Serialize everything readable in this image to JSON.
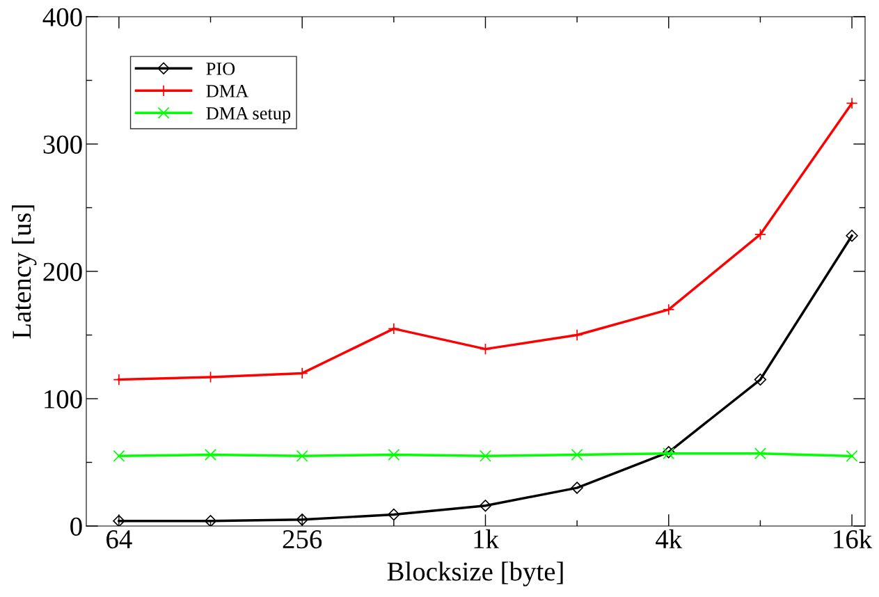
{
  "chart_data": {
    "type": "line",
    "xlabel": "Blocksize [byte]",
    "ylabel": "Latency [us]",
    "log": "x",
    "x": [
      64,
      128,
      256,
      512,
      1024,
      2048,
      4096,
      8192,
      16384
    ],
    "xlim": [
      50,
      18100
    ],
    "ylim": [
      0,
      400
    ],
    "xticks": [
      64,
      {
        "value": 128,
        "label": null
      },
      256,
      {
        "value": 512,
        "label": null
      },
      {
        "value": 1024,
        "label": "1k"
      },
      {
        "value": 2048,
        "label": null
      },
      {
        "value": 4096,
        "label": "4k"
      },
      {
        "value": 8192,
        "label": null
      },
      {
        "value": 16384,
        "label": "16k"
      }
    ],
    "yticks": [
      0,
      {
        "value": 50,
        "label": null
      },
      100,
      {
        "value": 150,
        "label": null
      },
      200,
      {
        "value": 250,
        "label": null
      },
      300,
      {
        "value": 350,
        "label": null
      },
      400
    ],
    "grid": false,
    "legend": "top left",
    "line_style": "solid",
    "series": [
      {
        "name": "PIO",
        "color": "#000000",
        "marker": "diamond",
        "values": [
          4,
          4,
          5,
          9,
          16,
          30,
          58,
          115,
          228
        ]
      },
      {
        "name": "DMA",
        "color": "#ff0000",
        "marker": "plus",
        "values": [
          115,
          117,
          120,
          155,
          139,
          150,
          170,
          229,
          332
        ]
      },
      {
        "name": "DMA setup",
        "color": "#00ff00",
        "marker": "cross",
        "values": [
          55,
          56,
          55,
          56,
          55,
          56,
          57,
          57,
          55
        ]
      }
    ]
  }
}
